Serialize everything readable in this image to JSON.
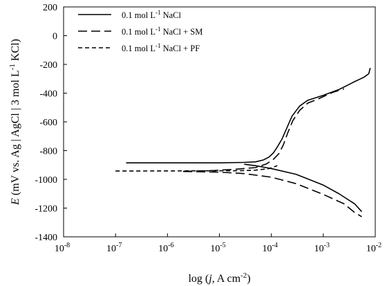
{
  "chart_data": {
    "type": "line",
    "xscale": "log",
    "xlim": [
      1e-08,
      0.01
    ],
    "ylim": [
      -1400,
      200
    ],
    "y_ticks": [
      200,
      0,
      -200,
      -400,
      -600,
      -800,
      -1000,
      -1200,
      -1400
    ],
    "x_ticks": [
      {
        "value": 1e-08,
        "base": "10",
        "exp": "-8"
      },
      {
        "value": 1e-07,
        "base": "10",
        "exp": "-7"
      },
      {
        "value": 1e-06,
        "base": "10",
        "exp": "-6"
      },
      {
        "value": 1e-05,
        "base": "10",
        "exp": "-5"
      },
      {
        "value": 0.0001,
        "base": "10",
        "exp": "-4"
      },
      {
        "value": 0.001,
        "base": "10",
        "exp": "-3"
      },
      {
        "value": 0.01,
        "base": "10",
        "exp": "-2"
      }
    ],
    "xlabel": {
      "prefix": "log (",
      "italic": "j",
      "mid": ", A cm",
      "sup": "-2",
      "suffix": ")"
    },
    "ylabel": {
      "italic": "E",
      "text": " (mV vs. Ag | AgCl | 3 mol L",
      "sup": "-1",
      "suffix": " KCl)"
    },
    "legend_position": "top-left",
    "grid": false,
    "series": [
      {
        "name": "0.1 mol L-1 NaCl",
        "legend": {
          "pre": "0.1 mol L",
          "sup": "-1",
          "post": " NaCl"
        },
        "dash": "solid",
        "color": "#000000",
        "anodic": [
          [
            1.6e-07,
            -885
          ],
          [
            1e-06,
            -885
          ],
          [
            1e-05,
            -885
          ],
          [
            3e-05,
            -882
          ],
          [
            5e-05,
            -878
          ],
          [
            7e-05,
            -865
          ],
          [
            9e-05,
            -845
          ],
          [
            0.00011,
            -815
          ],
          [
            0.00013,
            -775
          ],
          [
            0.00016,
            -720
          ],
          [
            0.0002,
            -640
          ],
          [
            0.00025,
            -560
          ],
          [
            0.00035,
            -490
          ],
          [
            0.0005,
            -450
          ],
          [
            0.001,
            -415
          ],
          [
            0.002,
            -375
          ],
          [
            0.004,
            -320
          ],
          [
            0.006,
            -290
          ],
          [
            0.0075,
            -265
          ],
          [
            0.008,
            -225
          ]
        ],
        "cathodic": [
          [
            3e-05,
            -895
          ],
          [
            5e-05,
            -905
          ],
          [
            0.0001,
            -925
          ],
          [
            0.0003,
            -965
          ],
          [
            0.001,
            -1040
          ],
          [
            0.002,
            -1100
          ],
          [
            0.004,
            -1170
          ],
          [
            0.0055,
            -1225
          ]
        ]
      },
      {
        "name": "0.1 mol L-1 NaCl + SM",
        "legend": {
          "pre": "0.1 mol L",
          "sup": "-1",
          "post": " NaCl + SM"
        },
        "dash": "long",
        "color": "#000000",
        "anodic": [
          [
            2e-06,
            -945
          ],
          [
            8e-06,
            -938
          ],
          [
            2e-05,
            -930
          ],
          [
            5e-05,
            -918
          ],
          [
            8e-05,
            -893
          ],
          [
            0.00011,
            -860
          ],
          [
            0.00014,
            -820
          ],
          [
            0.00017,
            -760
          ],
          [
            0.00021,
            -670
          ],
          [
            0.00026,
            -590
          ],
          [
            0.00035,
            -520
          ],
          [
            0.0005,
            -470
          ],
          [
            0.0008,
            -440
          ],
          [
            0.0015,
            -395
          ],
          [
            0.0025,
            -370
          ]
        ],
        "cathodic": [
          [
            2e-06,
            -945
          ],
          [
            1e-05,
            -950
          ],
          [
            3e-05,
            -960
          ],
          [
            0.0001,
            -985
          ],
          [
            0.0003,
            -1030
          ],
          [
            0.001,
            -1105
          ],
          [
            0.0025,
            -1170
          ],
          [
            0.004,
            -1230
          ],
          [
            0.0055,
            -1260
          ]
        ]
      },
      {
        "name": "0.1 mol L-1 NaCl + PF",
        "legend": {
          "pre": "0.1 mol L",
          "sup": "-1",
          "post": " NaCl + PF"
        },
        "dash": "short",
        "color": "#000000",
        "anodic": [
          [
            1e-07,
            -942
          ],
          [
            1.25e-07,
            -942
          ],
          [
            2.4e-05,
            -940
          ],
          [
            5e-05,
            -936
          ],
          [
            9e-05,
            -925
          ],
          [
            0.00013,
            -905
          ]
        ],
        "cathodic": []
      }
    ]
  }
}
